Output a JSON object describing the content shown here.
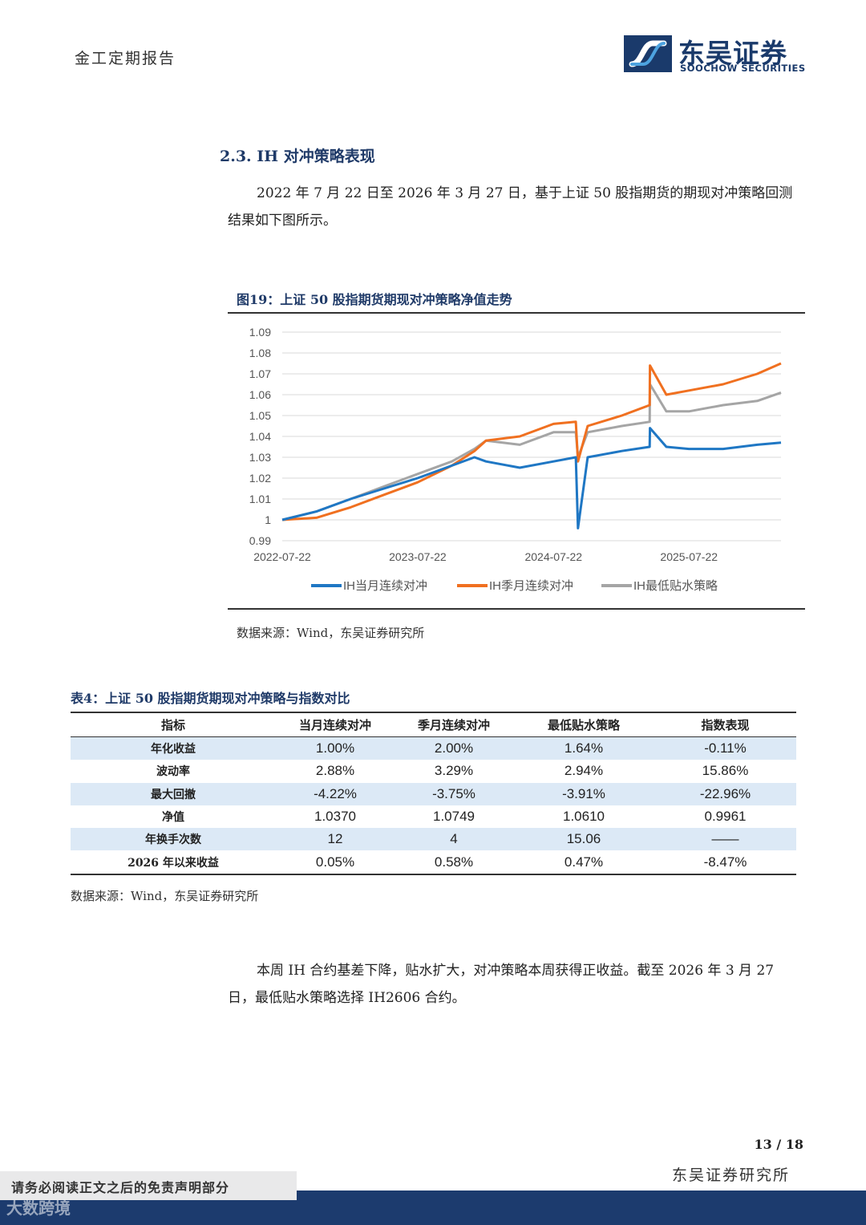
{
  "header": {
    "left_title": "金工定期报告",
    "brand_cn": "东吴证券",
    "brand_en": "SOOCHOW SECURITIES"
  },
  "section": {
    "title": "2.3.  IH 对冲策略表现",
    "para1": "2022 年 7 月 22 日至 2026 年 3 月 27 日，基于上证 50 股指期货的期现对冲策略回测结果如下图所示。"
  },
  "figure": {
    "title": "图19：上证 50 股指期货期现对冲策略净值走势",
    "source": "数据来源：Wind，东吴证券研究所"
  },
  "chart_data": {
    "type": "line",
    "title": "上证 50 股指期货期现对冲策略净值走势",
    "x": [
      "2022-07-22",
      "2022-10-22",
      "2023-01-22",
      "2023-04-22",
      "2023-07-22",
      "2023-10-22",
      "2023-12-22",
      "2024-01-22",
      "2024-04-22",
      "2024-07-22",
      "2024-09-20",
      "2024-09-26",
      "2024-10-22",
      "2025-01-22",
      "2025-04-07",
      "2025-04-08",
      "2025-05-22",
      "2025-07-22",
      "2025-10-22",
      "2026-01-22",
      "2026-03-27"
    ],
    "x_tick_labels": [
      "2022-07-22",
      "2023-07-22",
      "2024-07-22",
      "2025-07-22"
    ],
    "ylim": [
      0.99,
      1.09
    ],
    "y_ticks": [
      "0.99",
      "1",
      "1.01",
      "1.02",
      "1.03",
      "1.04",
      "1.05",
      "1.06",
      "1.07",
      "1.08",
      "1.09"
    ],
    "series": [
      {
        "name": "IH当月连续对冲",
        "color": "#1f77c4",
        "values": [
          1.0,
          1.004,
          1.01,
          1.015,
          1.02,
          1.026,
          1.03,
          1.028,
          1.025,
          1.028,
          1.03,
          0.996,
          1.03,
          1.033,
          1.035,
          1.044,
          1.035,
          1.034,
          1.034,
          1.036,
          1.037
        ]
      },
      {
        "name": "IH季月连续对冲",
        "color": "#f07020",
        "values": [
          1.0,
          1.001,
          1.006,
          1.012,
          1.018,
          1.026,
          1.033,
          1.038,
          1.04,
          1.046,
          1.047,
          1.028,
          1.045,
          1.05,
          1.055,
          1.074,
          1.06,
          1.062,
          1.065,
          1.07,
          1.075
        ]
      },
      {
        "name": "IH最低贴水策略",
        "color": "#a5a5a5",
        "values": [
          1.0,
          1.004,
          1.01,
          1.016,
          1.022,
          1.028,
          1.034,
          1.038,
          1.036,
          1.042,
          1.042,
          1.03,
          1.042,
          1.045,
          1.047,
          1.065,
          1.052,
          1.052,
          1.055,
          1.057,
          1.061
        ]
      }
    ]
  },
  "table": {
    "title": "表4：上证 50 股指期货期现对冲策略与指数对比",
    "headers": [
      "指标",
      "当月连续对冲",
      "季月连续对冲",
      "最低贴水策略",
      "指数表现"
    ],
    "rows": [
      [
        "年化收益",
        "1.00%",
        "2.00%",
        "1.64%",
        "-0.11%"
      ],
      [
        "波动率",
        "2.88%",
        "3.29%",
        "2.94%",
        "15.86%"
      ],
      [
        "最大回撤",
        "-4.22%",
        "-3.75%",
        "-3.91%",
        "-22.96%"
      ],
      [
        "净值",
        "1.0370",
        "1.0749",
        "1.0610",
        "0.9961"
      ],
      [
        "年换手次数",
        "12",
        "4",
        "15.06",
        "——"
      ],
      [
        "2026 年以来收益",
        "0.05%",
        "0.58%",
        "0.47%",
        "-8.47%"
      ]
    ],
    "source": "数据来源：Wind，东吴证券研究所"
  },
  "para2": "本周 IH 合约基差下降，贴水扩大，对冲策略本周获得正收益。截至 2026 年 3 月 27 日，最低贴水策略选择 IH2606 合约。",
  "footer": {
    "page": "13 / 18",
    "org": "东吴证券研究所",
    "disclaimer": "请务必阅读正文之后的免责声明部分",
    "watermark": "大数跨境"
  }
}
